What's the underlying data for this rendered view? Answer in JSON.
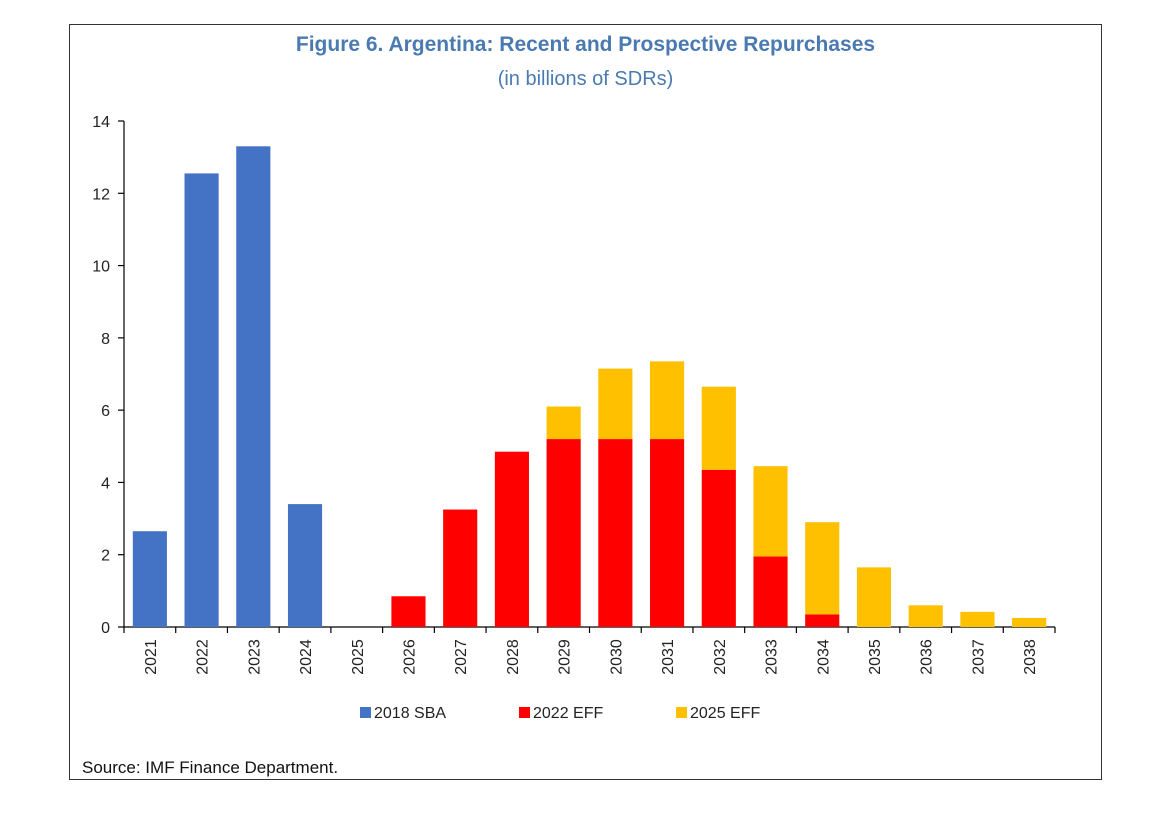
{
  "chart_data": {
    "type": "bar",
    "stacked": true,
    "title": "Figure 6. Argentina: Recent and Prospective Repurchases",
    "subtitle": "(in billions of SDRs)",
    "source": "Source: IMF Finance Department.",
    "categories": [
      "2021",
      "2022",
      "2023",
      "2024",
      "2025",
      "2026",
      "2027",
      "2028",
      "2029",
      "2030",
      "2031",
      "2032",
      "2033",
      "2034",
      "2035",
      "2036",
      "2037",
      "2038"
    ],
    "ylim": [
      0,
      14
    ],
    "yticks": [
      "0",
      "2",
      "4",
      "6",
      "8",
      "10",
      "12",
      "14"
    ],
    "series": [
      {
        "name": "2018 SBA",
        "color": "#4472c4",
        "values": [
          2.65,
          12.55,
          13.3,
          3.4,
          0,
          0,
          0,
          0,
          0,
          0,
          0,
          0,
          0,
          0,
          0,
          0,
          0,
          0
        ]
      },
      {
        "name": "2022 EFF",
        "color": "#ff0000",
        "values": [
          0,
          0,
          0,
          0,
          0,
          0.85,
          3.25,
          4.85,
          5.2,
          5.2,
          5.2,
          4.35,
          1.95,
          0.35,
          0,
          0,
          0,
          0
        ]
      },
      {
        "name": "2025 EFF",
        "color": "#ffc000",
        "values": [
          0,
          0,
          0,
          0,
          0,
          0,
          0,
          0,
          0.9,
          1.95,
          2.15,
          2.3,
          2.5,
          2.55,
          1.65,
          0.6,
          0.42,
          0.25
        ]
      }
    ]
  }
}
